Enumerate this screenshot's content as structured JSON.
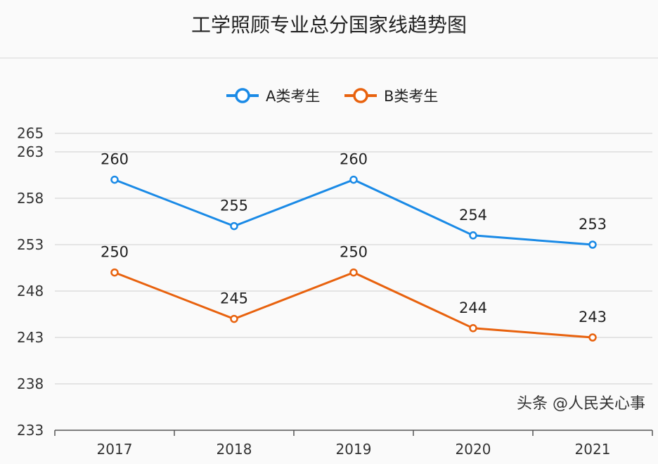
{
  "chart_data": {
    "type": "line",
    "title": "工学照顾专业总分国家线趋势图",
    "categories": [
      "2017",
      "2018",
      "2019",
      "2020",
      "2021"
    ],
    "yticks": [
      233,
      238,
      243,
      248,
      253,
      258,
      263,
      265
    ],
    "ylim": [
      233,
      265
    ],
    "grid": true,
    "legend_position": "top",
    "series": [
      {
        "name": "A类考生",
        "color": "#1a8ae6",
        "values": [
          260,
          255,
          260,
          254,
          253
        ]
      },
      {
        "name": "B类考生",
        "color": "#e8620e",
        "values": [
          250,
          245,
          250,
          244,
          243
        ]
      }
    ]
  },
  "watermark": "头条 @人民关心事"
}
